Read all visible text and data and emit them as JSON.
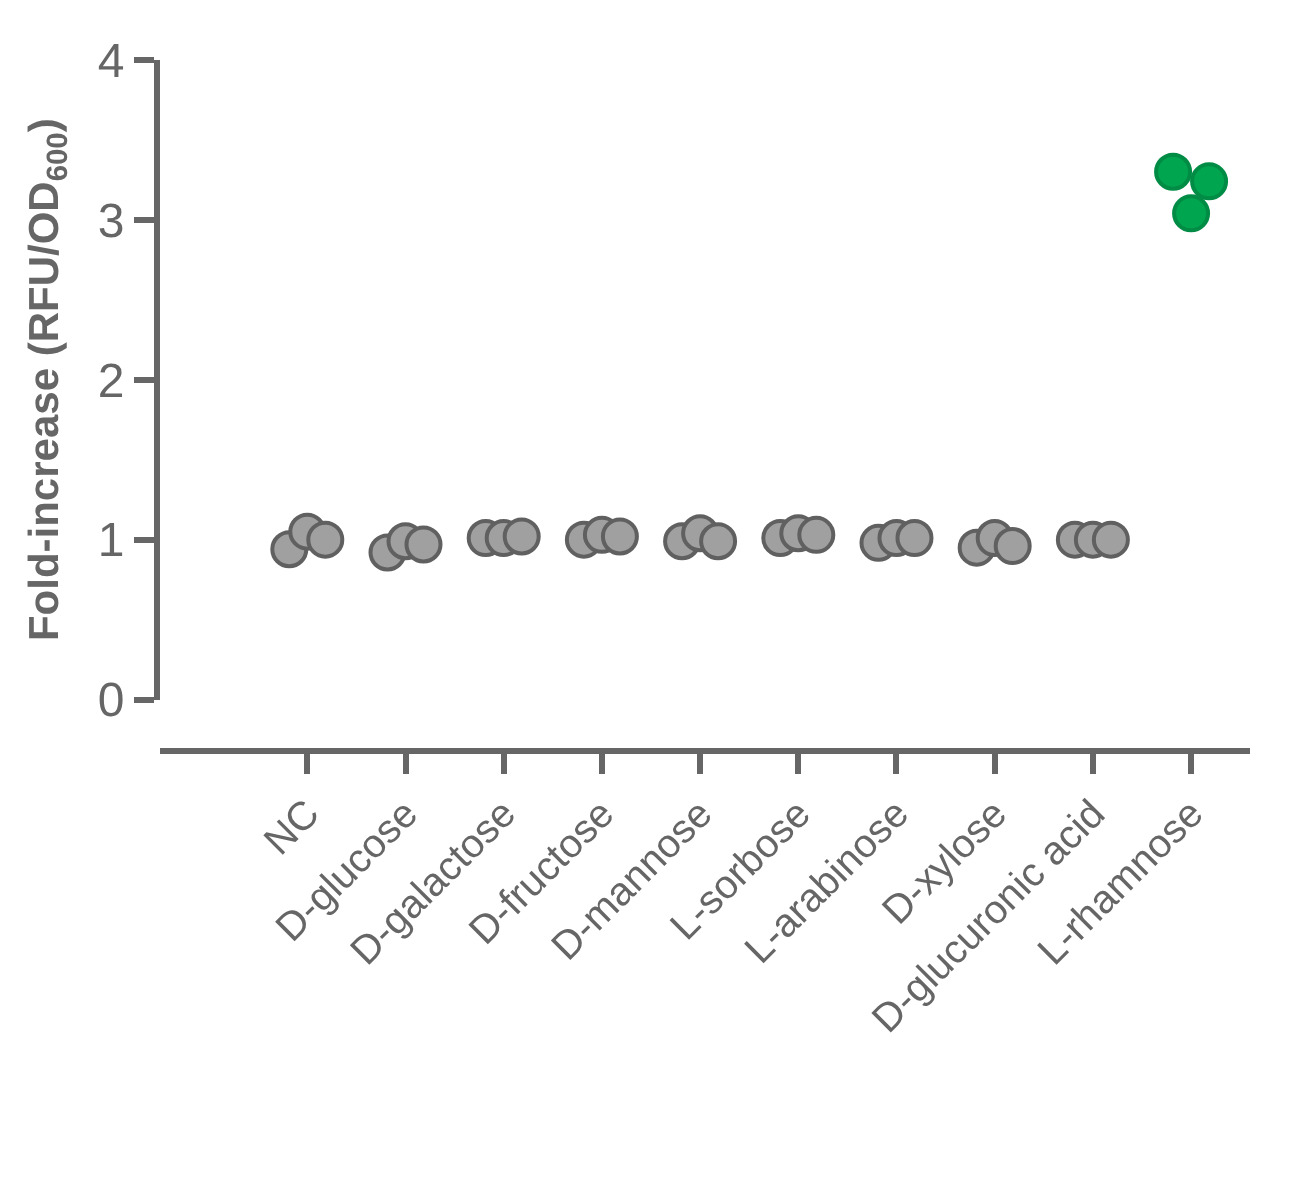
{
  "chart_data": {
    "type": "scatter",
    "ylabel": "Fold-increase (RFU/OD$_{600}$)",
    "categories": [
      "NC",
      "D-glucose",
      "D-galactose",
      "D-fructose",
      "D-mannose",
      "L-sorbose",
      "L-arabinose",
      "D-xylose",
      "D-glucuronic acid",
      "L-rhamnose"
    ],
    "series": [
      {
        "colors": [
          "#a0a0a0",
          "#a0a0a0",
          "#a0a0a0",
          "#a0a0a0",
          "#a0a0a0",
          "#a0a0a0",
          "#a0a0a0",
          "#a0a0a0",
          "#a0a0a0",
          "#00a550"
        ],
        "values": [
          0.94,
          0.92,
          1.01,
          1.0,
          0.99,
          1.01,
          0.98,
          0.95,
          1.0,
          3.3
        ]
      },
      {
        "colors": [
          "#a0a0a0",
          "#a0a0a0",
          "#a0a0a0",
          "#a0a0a0",
          "#a0a0a0",
          "#a0a0a0",
          "#a0a0a0",
          "#a0a0a0",
          "#a0a0a0",
          "#00a550"
        ],
        "values": [
          1.05,
          0.99,
          1.01,
          1.03,
          1.04,
          1.04,
          1.01,
          1.01,
          1.0,
          3.04
        ]
      },
      {
        "colors": [
          "#a0a0a0",
          "#a0a0a0",
          "#a0a0a0",
          "#a0a0a0",
          "#a0a0a0",
          "#a0a0a0",
          "#a0a0a0",
          "#a0a0a0",
          "#a0a0a0",
          "#00a550"
        ],
        "values": [
          1.0,
          0.97,
          1.02,
          1.02,
          0.99,
          1.03,
          1.01,
          0.96,
          1.0,
          3.24
        ]
      }
    ],
    "ylim": [
      0,
      4
    ],
    "yticks": [
      0,
      1,
      2,
      3,
      4
    ],
    "marker": "circle"
  }
}
